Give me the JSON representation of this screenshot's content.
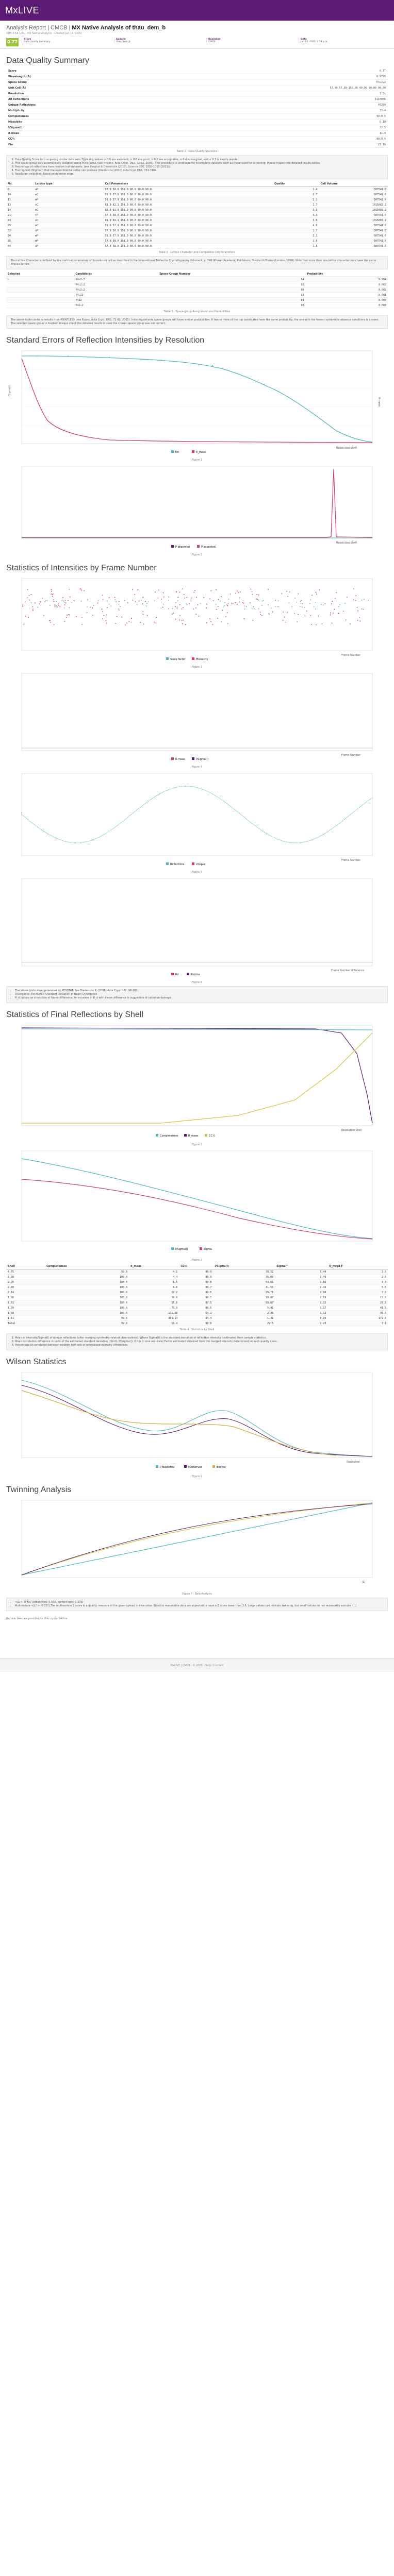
{
  "app": {
    "name": "MxLIVE"
  },
  "report": {
    "title_prefix": "Analysis Report | CMCB |",
    "title_main": "MX Native Analysis of thau_dem_b",
    "meta": "XDS-3.54.1/AL  ·  MX Native Analysis  ·  Created Jan 14, 2020"
  },
  "summary": {
    "score": "0.77",
    "cells": [
      {
        "label": "Score",
        "value": "Data Quality Summary"
      },
      {
        "label": "Sample",
        "value": "thau_dem_b"
      },
      {
        "label": "Beamline",
        "value": "CMCB"
      },
      {
        "label": "Date",
        "value": "Jan 14, 2020, 3:58 p.m."
      }
    ]
  },
  "sections": {
    "quality": "Data Quality Summary",
    "std_errors": "Standard Errors of Reflection Intensities by Resolution",
    "frame_stats": "Statistics of Intensities by Frame Number",
    "shell_stats": "Statistics of Final Reflections by Shell",
    "wilson": "Wilson Statistics",
    "twinning": "Twinning Analysis"
  },
  "quality_table": [
    {
      "k": "Score",
      "v": "0.77"
    },
    {
      "k": "Wavelength (Å)",
      "v": "0.9795"
    },
    {
      "k": "Space Group",
      "v": "P4₂2₁2"
    },
    {
      "k": "Unit Cell (Å)",
      "v": "57.99  57.99  150.96  90.00  90.00  90.00"
    },
    {
      "k": "Resolution",
      "v": "1.51"
    },
    {
      "k": "All Reflections",
      "v": "1110086"
    },
    {
      "k": "Unique Reflections",
      "v": "47289"
    },
    {
      "k": "Multiplicity",
      "v": "23.4"
    },
    {
      "k": "Completeness",
      "v": "99.9 %"
    },
    {
      "k": "Mosaicity",
      "v": "0.10"
    },
    {
      "k": "I/Sigma(I)",
      "v": "22.5"
    },
    {
      "k": "R-meas",
      "v": "11.4"
    },
    {
      "k": "CC½",
      "v": "99.9 %"
    },
    {
      "k": "ISa",
      "v": "23.16"
    }
  ],
  "captions": {
    "t1": "Table 1 · Data Quality Statistics",
    "t2": "Table 2 · Lattice Character and Compatible Cell Parameters",
    "t3": "Table 3 · Space-group Assignment and Probabilities",
    "f1": "Figure 1",
    "f2": "Figure 2",
    "f3": "Figure 3",
    "f4": "Figure 4",
    "f5": "Figure 5",
    "f6": "Figure 6",
    "t4": "Table 4 · Statistics by Shell",
    "f7": "Figure 7 · Twin Analysis"
  },
  "notes1": [
    "Data Quality Score for comparing similar data sets. Typically, values > 0.8 are excellent, > 0.6 are good, > 0.5 are acceptable, < 0.4 is marginal, and < 0.3 is barely usable.",
    "This space group was automatically assigned using POINTLESS (see P.Evans, Acta Cryst. D62, 72-82, 2005). This procedure is unreliable for incomplete datasets such as those used for screening. Please inspect the detailed results below.",
    "Percentage of reflections from random half-datasets. (see Karplus & Diederichs (2012), Science 336, 1030-1033 (2012)).",
    "The highest I/Sigma(I) that the experimental setup can produce (Diederichs (2010) Acta Cryst D66, 733-740).",
    "Resolution selection: Based on detector edge."
  ],
  "lattice_headers": [
    "No.",
    "Lattice type",
    "Cell Parameters",
    "Quality",
    "Cell Volume"
  ],
  "lattice_rows": [
    [
      "8",
      "aP",
      "57.9   58.0  151.0  90.0  90.0  90.0",
      "1.4",
      "507541.6"
    ],
    [
      "10",
      "mC",
      "58.0   57.9  151.0  90.0  90.0  90.0",
      "2.7",
      "507541.6"
    ],
    [
      "11",
      "mP",
      "58.0   57.9  151.0  90.0  90.0  90.0",
      "2.1",
      "507541.6"
    ],
    [
      "13",
      "oC",
      "81.9   82.1  151.0  90.0  90.0  90.0",
      "2.7",
      "1015083.2"
    ],
    [
      "14",
      "mC",
      "82.0   81.9  151.0  90.0  90.0  90.0",
      "3.3",
      "1015083.2"
    ],
    [
      "21",
      "tP",
      "57.9   58.0  151.0  90.0  90.0  90.0",
      "4.3",
      "507541.6"
    ],
    [
      "23",
      "oC",
      "81.9   82.1  151.0  90.0  90.0  90.0",
      "3.0",
      "1015083.2"
    ],
    [
      "29",
      "mC",
      "58.0   57.9  151.0  90.0  90.0  90.0",
      "4.0",
      "507541.6"
    ],
    [
      "32",
      "oP",
      "57.9   58.0  151.0  90.0  90.0  90.0",
      "1.7",
      "507541.6"
    ],
    [
      "34",
      "mP",
      "58.0   57.9  151.0  90.0  90.0  90.0",
      "2.1",
      "507541.6"
    ],
    [
      "35",
      "mP",
      "57.9   58.0  151.0  90.0  90.0  90.0",
      "1.6",
      "507541.6"
    ],
    [
      "44",
      "aP",
      "57.9   58.0  151.0  90.0  90.0  90.0",
      "1.8",
      "507541.6"
    ]
  ],
  "lattice_note": "The Lattice Character is defined by the metrical parameters of its reduced cell as described in the International Tables for Crystallography Volume A, p. 746 (Kluwer Academic Publishers, Dordrecht/Boston/London, 1989). Note that more than one lattice character may have the same Bravais lattice.",
  "sg_headers": [
    "Selected",
    "Candidates",
    "Space-Group Number",
    "Probability"
  ],
  "sg_rows": [
    [
      "✓",
      "P4₂2₁2",
      "94",
      "0.994"
    ],
    [
      "",
      "P4₁2₁2",
      "92",
      "0.002"
    ],
    [
      "",
      "P4₃2₁2",
      "96",
      "0.002"
    ],
    [
      "",
      "P4₂22",
      "93",
      "0.001"
    ],
    [
      "",
      "P422",
      "89",
      "0.000"
    ],
    [
      "",
      "P42₁2",
      "90",
      "0.000"
    ]
  ],
  "sg_note": "The above table contains results from POINTLESS (see Evans, Acta Cryst. D62, 72-82, 2005). Indistinguishable space groups will have similar probabilities. If two or more of the top candidates have the same probability, the one with the fewest systematic-absence conditions is chosen. The selected space group is marked. Always check the detailed results in case the chosen space group was not correct.",
  "notes_frames": [
    "The above plots were generated by XDSSTAT. See Diederichs K. (2006) Acta Cryst D62, 96-101.",
    "Divergence: Estimated Standard Deviation of Beam Divergence",
    "R_d factors as a function of frame difference. An increase in R_d with frame difference is suggestive of radiation damage."
  ],
  "shell_headers": [
    "Shell",
    "Completeness",
    "R_meas",
    "CC½",
    "I/Sigma(I)",
    "Sigma⁽ᵃ⁾",
    "R_mrgd-F"
  ],
  "shell_rows": [
    [
      "4.75",
      "99.8",
      "4.1",
      "99.9",
      "78.52",
      "5.44",
      "3.0"
    ],
    [
      "3.38",
      "100.0",
      "4.4",
      "99.9",
      "76.00",
      "3.46",
      "2.6"
    ],
    [
      "2.76",
      "100.0",
      "6.5",
      "99.8",
      "54.01",
      "2.86",
      "4.4"
    ],
    [
      "2.40",
      "100.0",
      "8.6",
      "99.7",
      "41.53",
      "2.46",
      "5.6"
    ],
    [
      "2.14",
      "100.0",
      "12.2",
      "99.5",
      "29.71",
      "1.90",
      "7.8"
    ],
    [
      "1.96",
      "100.0",
      "19.9",
      "99.1",
      "18.87",
      "1.59",
      "12.0"
    ],
    [
      "1.81",
      "100.0",
      "35.6",
      "97.5",
      "10.87",
      "1.32",
      "20.5"
    ],
    [
      "1.70",
      "100.0",
      "73.9",
      "89.5",
      "5.41",
      "1.17",
      "41.5"
    ],
    [
      "1.60",
      "100.0",
      "171.58",
      "64.3",
      "2.36",
      "1.13",
      "99.0"
    ],
    [
      "1.51",
      "99.5",
      "301.14",
      "34.4",
      "1.21",
      "0.95",
      "172.8"
    ],
    [
      "Total",
      "99.9",
      "11.4",
      "99.9",
      "22.5",
      "2.23",
      "7.1"
    ]
  ],
  "shell_notes": [
    "Mean of intensity/Sigma(I) of unique reflections (after merging symmetry-related observations). Where Sigma(I) is the standard deviation of reflection intensity I estimated from sample statistics.",
    "Mean correlation difference in units of the estimated standard deviation (ISI=0, |E(sigma)|). If it is 1 (one accurate) Factor estimated obtained from the merged intensity determined on each quality class.",
    "Percentage of correlation between random half-sets of normalized intensity differences."
  ],
  "twin_notes": [
    "<|L|>: 0.497 [untwinned: 0.500, perfect twin: 0.375]",
    "Multivariate <|L²|>: 0.331 [The multivariate Z score is a quality measure of the given spread in intensities. Good to reasonable data are expected to have a Z score lower than 3.5. Large values can indicate twinning, but small values do not necessarily exclude it.]"
  ],
  "twin_tail": "No twin laws are possible for this crystal lattice.",
  "footer": "MxLIVE | CMCB  ·  © 2020  ·  Help / Contact",
  "figs": {
    "f1_ylab": "I/Sigma(I)",
    "f1_ylab2": "R-meas",
    "f1_xlab": "Resolution Shell",
    "f1_leg": [
      "I/σ",
      "R_meas"
    ],
    "f2_xlab": "Resolution Shell",
    "f2_leg": [
      "P observed",
      "P expected"
    ],
    "f3_leg": [
      "Scale factor",
      "Mosaicity"
    ],
    "f4_leg": [
      "R-meas",
      "I/Sigma(I)"
    ],
    "f5_leg": [
      "Reflections",
      "Unique"
    ],
    "f6_leg": [
      "Rd",
      "Rd/obs"
    ],
    "xlab_frame": "Frame Number",
    "xlab_frame_diff": "Frame Number difference",
    "f_shell1_leg": [
      "Completeness",
      "R_meas",
      "CC½"
    ],
    "f_shell2_leg": [
      "I/Sigma(I)",
      "Sigma"
    ],
    "wilson_leg": [
      "I/ Expected",
      "I/Observed",
      "Binned"
    ],
    "wilson_xlab": "Resolution",
    "twin_xlab": "|L|"
  },
  "chart_data": [
    {
      "type": "line",
      "title": "",
      "series": [
        {
          "name": "I/σ",
          "values": [
            19.5,
            19.3,
            19.2,
            19.0,
            18.9,
            18.7,
            18.5,
            18.2,
            18.0,
            17.6,
            17.0,
            16.2,
            15.0,
            13.2,
            11.5,
            9.8,
            8.0,
            6.0,
            4.2,
            2.8,
            1.5
          ]
        },
        {
          "name": "R_meas",
          "values": [
            18,
            13,
            9,
            6.5,
            5,
            4,
            3,
            2.5,
            2,
            1.8,
            1.6,
            1.4,
            1.3,
            1.2,
            1.1,
            1.0,
            1.0,
            0.9,
            0.9,
            0.8,
            0.8
          ]
        }
      ]
    }
  ]
}
